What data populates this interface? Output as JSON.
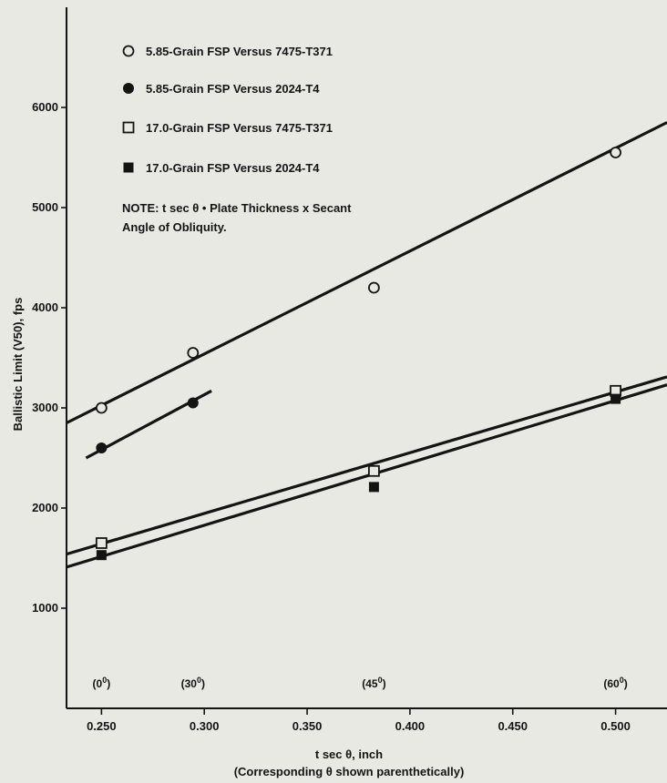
{
  "chart_data": {
    "type": "scatter",
    "title": "",
    "xlabel": "t sec θ, inch",
    "xlabel_sub": "(Corresponding θ shown parenthetically)",
    "ylabel": "Ballistic Limit (V50), fps",
    "xlim": [
      0.233,
      0.525
    ],
    "ylim": [
      0,
      7000
    ],
    "x_ticks": [
      0.25,
      0.3,
      0.35,
      0.4,
      0.45,
      0.5
    ],
    "x_tick_labels": [
      "0.250",
      "0.300",
      "0.350",
      "0.400",
      "0.450",
      "0.500"
    ],
    "y_ticks": [
      1000,
      2000,
      3000,
      4000,
      5000,
      6000
    ],
    "y_tick_labels": [
      "1000",
      "2000",
      "3000",
      "4000",
      "5000",
      "6000"
    ],
    "angle_labels": [
      {
        "x": 0.25,
        "base": "(0",
        "sup": "0",
        "close": ")"
      },
      {
        "x": 0.2945,
        "base": "(30",
        "sup": "0",
        "close": ")"
      },
      {
        "x": 0.3825,
        "base": "(45",
        "sup": "0",
        "close": ")"
      },
      {
        "x": 0.5,
        "base": "(60",
        "sup": "0",
        "close": ")"
      }
    ],
    "grid": false,
    "legend_position": "top-left",
    "note": [
      "NOTE:  t sec θ • Plate Thickness x Secant",
      "Angle of Obliquity."
    ],
    "series": [
      {
        "name": "5.85-Grain FSP Versus 7475-T371",
        "marker": "open-circle",
        "x": [
          0.25,
          0.2945,
          0.3825,
          0.5
        ],
        "y": [
          3000,
          3550,
          4200,
          5550
        ],
        "fit_line": {
          "x": [
            0.233,
            0.525
          ],
          "y": [
            2850,
            5850
          ]
        }
      },
      {
        "name": "5.85-Grain FSP Versus 2024-T4",
        "marker": "filled-circle",
        "x": [
          0.25,
          0.2945
        ],
        "y": [
          2600,
          3050
        ],
        "fit_line": {
          "x": [
            0.2425,
            0.3035
          ],
          "y": [
            2500,
            3170
          ]
        }
      },
      {
        "name": "17.0-Grain FSP Versus 7475-T371",
        "marker": "open-square",
        "x": [
          0.25,
          0.3825,
          0.5
        ],
        "y": [
          1650,
          2370,
          3170
        ],
        "fit_line": {
          "x": [
            0.233,
            0.525
          ],
          "y": [
            1540,
            3310
          ]
        }
      },
      {
        "name": "17.0-Grain FSP Versus 2024-T4",
        "marker": "filled-square",
        "x": [
          0.25,
          0.3825,
          0.5
        ],
        "y": [
          1530,
          2210,
          3090
        ],
        "fit_line": {
          "x": [
            0.233,
            0.525
          ],
          "y": [
            1410,
            3230
          ]
        }
      }
    ]
  }
}
